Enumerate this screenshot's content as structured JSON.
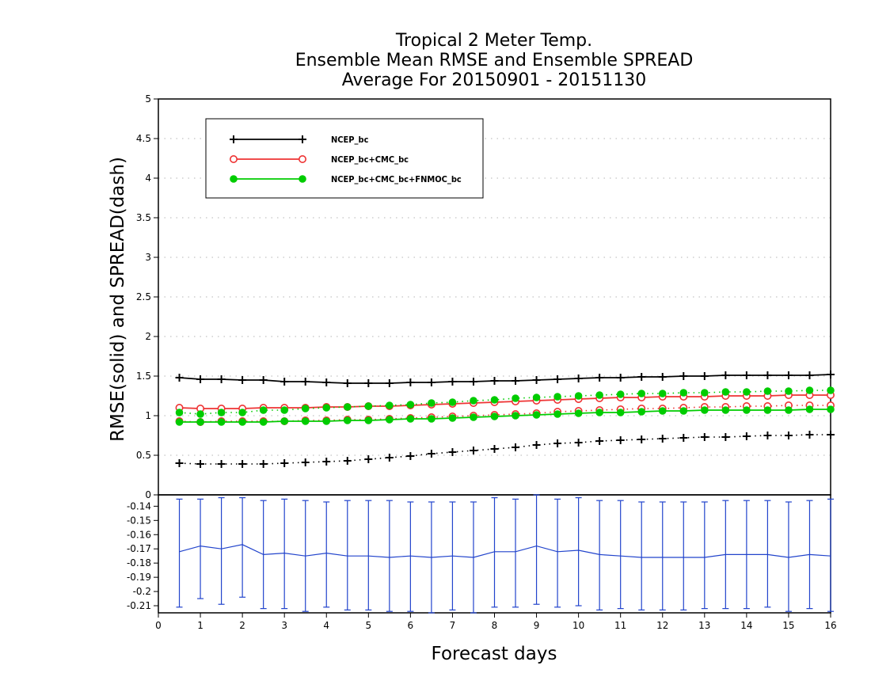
{
  "chart_data": {
    "type": "line",
    "title": [
      "Tropical 2 Meter Temp.",
      "Ensemble Mean RMSE and Ensemble SPREAD",
      "Average For 20150901 - 20151130"
    ],
    "xlabel": "Forecast days",
    "ylabel": "RMSE(solid) and SPREAD(dash)",
    "xlim": [
      0,
      16
    ],
    "ylim": [
      0,
      5
    ],
    "x_ticks": [
      "0",
      "1",
      "2",
      "3",
      "4",
      "5",
      "6",
      "7",
      "8",
      "9",
      "10",
      "11",
      "12",
      "13",
      "14",
      "15",
      "16"
    ],
    "y_ticks": [
      "0",
      "0.5",
      "1",
      "1.5",
      "2",
      "2.5",
      "3",
      "3.5",
      "4",
      "4.5",
      "5"
    ],
    "grid": true,
    "legend_position": "top-left",
    "x": [
      0.5,
      1,
      1.5,
      2,
      2.5,
      3,
      3.5,
      4,
      4.5,
      5,
      5.5,
      6,
      6.5,
      7,
      7.5,
      8,
      8.5,
      9,
      9.5,
      10,
      10.5,
      11,
      11.5,
      12,
      12.5,
      13,
      13.5,
      14,
      14.5,
      15,
      15.5,
      16
    ],
    "series": [
      {
        "name": "NCEP_bc",
        "color": "#000000",
        "marker": "plus",
        "rmse": [
          1.48,
          1.46,
          1.46,
          1.45,
          1.45,
          1.43,
          1.43,
          1.42,
          1.41,
          1.41,
          1.41,
          1.42,
          1.42,
          1.43,
          1.43,
          1.44,
          1.44,
          1.45,
          1.46,
          1.47,
          1.48,
          1.48,
          1.49,
          1.49,
          1.5,
          1.5,
          1.51,
          1.51,
          1.51,
          1.51,
          1.51,
          1.52
        ],
        "spread": [
          0.4,
          0.39,
          0.39,
          0.39,
          0.39,
          0.4,
          0.41,
          0.42,
          0.43,
          0.45,
          0.47,
          0.49,
          0.52,
          0.54,
          0.56,
          0.58,
          0.6,
          0.63,
          0.65,
          0.66,
          0.68,
          0.69,
          0.7,
          0.71,
          0.72,
          0.73,
          0.73,
          0.74,
          0.75,
          0.75,
          0.76,
          0.76
        ]
      },
      {
        "name": "NCEP_bc+CMC_bc",
        "color": "#ee3333",
        "marker": "open-circle",
        "rmse": [
          1.1,
          1.09,
          1.09,
          1.09,
          1.1,
          1.1,
          1.1,
          1.11,
          1.11,
          1.12,
          1.12,
          1.13,
          1.14,
          1.15,
          1.16,
          1.17,
          1.18,
          1.19,
          1.2,
          1.21,
          1.22,
          1.23,
          1.23,
          1.24,
          1.24,
          1.24,
          1.25,
          1.25,
          1.25,
          1.26,
          1.26,
          1.26
        ],
        "spread": [
          0.93,
          0.92,
          0.93,
          0.93,
          0.93,
          0.93,
          0.94,
          0.94,
          0.95,
          0.95,
          0.96,
          0.97,
          0.98,
          0.99,
          1.0,
          1.01,
          1.02,
          1.03,
          1.05,
          1.06,
          1.07,
          1.08,
          1.09,
          1.09,
          1.1,
          1.11,
          1.11,
          1.12,
          1.12,
          1.13,
          1.13,
          1.13
        ]
      },
      {
        "name": "NCEP_bc+CMC_bc+FNMOC_bc",
        "color": "#00cc00",
        "marker": "filled-circle",
        "rmse": [
          0.92,
          0.92,
          0.92,
          0.92,
          0.92,
          0.93,
          0.93,
          0.93,
          0.94,
          0.94,
          0.95,
          0.96,
          0.96,
          0.97,
          0.98,
          0.99,
          1.0,
          1.01,
          1.02,
          1.03,
          1.04,
          1.04,
          1.05,
          1.06,
          1.06,
          1.07,
          1.07,
          1.07,
          1.07,
          1.07,
          1.08,
          1.08
        ],
        "spread": [
          1.04,
          1.02,
          1.04,
          1.04,
          1.07,
          1.07,
          1.09,
          1.1,
          1.11,
          1.12,
          1.13,
          1.14,
          1.16,
          1.17,
          1.19,
          1.2,
          1.22,
          1.23,
          1.24,
          1.25,
          1.26,
          1.27,
          1.28,
          1.28,
          1.29,
          1.29,
          1.3,
          1.3,
          1.31,
          1.31,
          1.32,
          1.32
        ]
      }
    ],
    "difference_panel": {
      "type": "line-errorbar",
      "color": "#2244cc",
      "ylim": [
        -0.215,
        -0.132
      ],
      "y_ticks": [
        "-0.14",
        "-0.15",
        "-0.16",
        "-0.17",
        "-0.18",
        "-0.19",
        "-0.2",
        "-0.21"
      ],
      "values": [
        -0.172,
        -0.168,
        -0.17,
        -0.167,
        -0.174,
        -0.173,
        -0.175,
        -0.173,
        -0.175,
        -0.175,
        -0.176,
        -0.175,
        -0.176,
        -0.175,
        -0.176,
        -0.172,
        -0.172,
        -0.168,
        -0.172,
        -0.171,
        -0.174,
        -0.175,
        -0.176,
        -0.176,
        -0.176,
        -0.176,
        -0.174,
        -0.174,
        -0.174,
        -0.176,
        -0.174,
        -0.175
      ],
      "upper": [
        -0.135,
        -0.135,
        -0.134,
        -0.134,
        -0.136,
        -0.135,
        -0.136,
        -0.137,
        -0.136,
        -0.136,
        -0.136,
        -0.137,
        -0.137,
        -0.137,
        -0.137,
        -0.134,
        -0.135,
        -0.132,
        -0.135,
        -0.134,
        -0.136,
        -0.136,
        -0.137,
        -0.137,
        -0.137,
        -0.137,
        -0.136,
        -0.136,
        -0.136,
        -0.137,
        -0.136,
        -0.135
      ],
      "lower": [
        -0.211,
        -0.205,
        -0.209,
        -0.204,
        -0.212,
        -0.212,
        -0.214,
        -0.211,
        -0.213,
        -0.213,
        -0.214,
        -0.214,
        -0.215,
        -0.213,
        -0.215,
        -0.211,
        -0.211,
        -0.209,
        -0.211,
        -0.21,
        -0.213,
        -0.212,
        -0.213,
        -0.213,
        -0.213,
        -0.212,
        -0.212,
        -0.212,
        -0.211,
        -0.214,
        -0.212,
        -0.214
      ]
    }
  }
}
